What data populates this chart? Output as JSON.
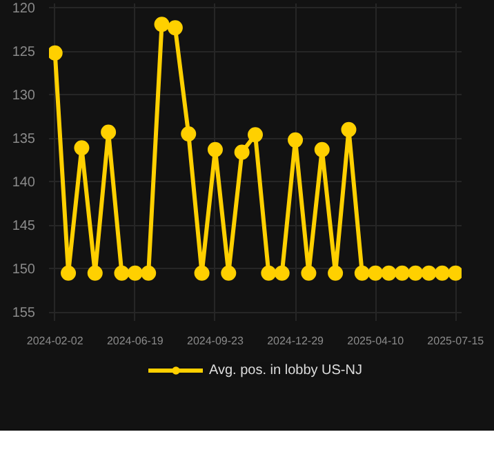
{
  "chart_data": {
    "type": "line",
    "categories": [
      "2024-02-02",
      null,
      null,
      null,
      null,
      null,
      "2024-06-19",
      null,
      null,
      null,
      null,
      null,
      "2024-09-23",
      null,
      null,
      null,
      null,
      null,
      "2024-12-29",
      null,
      null,
      null,
      null,
      null,
      "2025-04-10",
      null,
      null,
      null,
      null,
      null,
      "2025-07-15"
    ],
    "series": [
      {
        "name": "Avg. pos. in lobby US-NJ",
        "color": "#ffd000",
        "values": [
          125.2,
          150.5,
          136.1,
          150.5,
          134.3,
          150.5,
          150.5,
          150.5,
          121.9,
          122.3,
          134.5,
          150.5,
          136.3,
          150.5,
          136.6,
          134.6,
          150.5,
          150.5,
          135.2,
          150.5,
          136.3,
          150.5,
          134.0,
          150.5,
          150.5,
          150.5,
          150.5,
          150.5,
          150.5,
          150.5,
          150.5
        ]
      }
    ],
    "ylim": [
      156,
      119.5
    ],
    "yticks": [
      120,
      125,
      130,
      135,
      140,
      145,
      150,
      155
    ],
    "grid": true,
    "legend": "bottom",
    "marker": "circle",
    "line_style": "solid"
  }
}
